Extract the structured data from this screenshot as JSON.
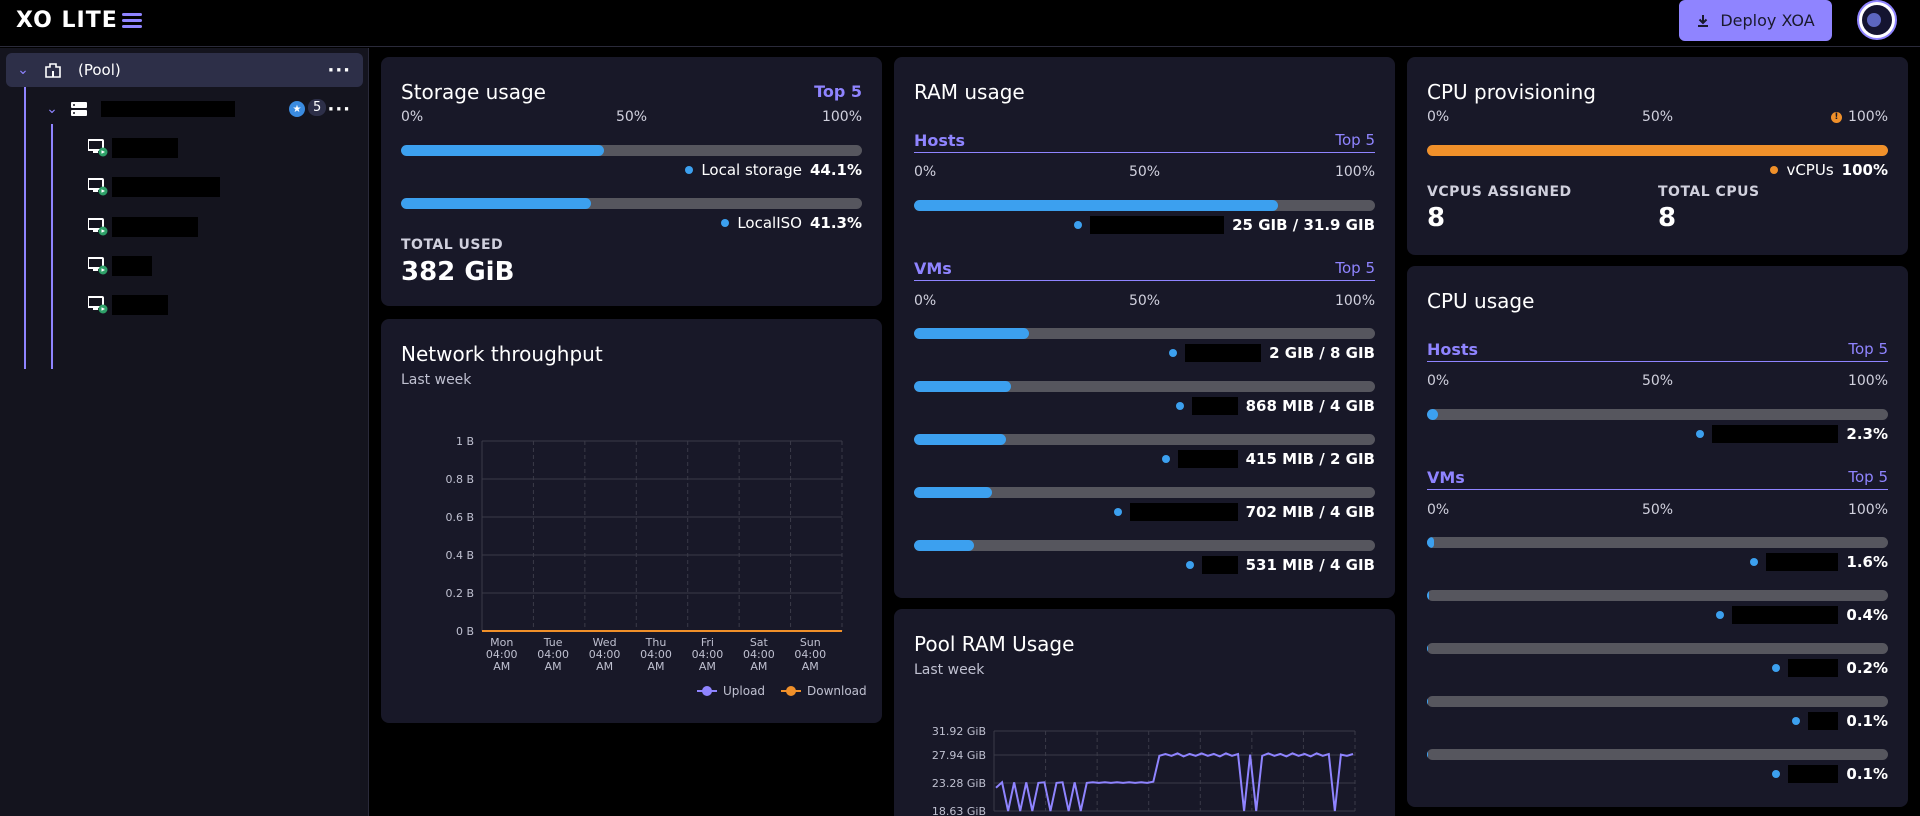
{
  "header": {
    "logo": "XO LITE",
    "deploy_label": "Deploy XOA"
  },
  "sidebar": {
    "pool_label": "(Pool)",
    "host_badge_count": "5"
  },
  "storage": {
    "title": "Storage usage",
    "top5": "Top 5",
    "scale": [
      "0%",
      "50%",
      "100%"
    ],
    "items": [
      {
        "name": "Local storage",
        "percent": "44.1%",
        "fraction": 0.441
      },
      {
        "name": "LocalISO",
        "percent": "41.3%",
        "fraction": 0.413
      }
    ],
    "total_label": "TOTAL USED",
    "total_value": "382 GiB"
  },
  "network": {
    "title": "Network throughput",
    "subtitle": "Last week"
  },
  "chart_data": [
    {
      "type": "line",
      "title": "Network throughput",
      "subtitle": "Last week",
      "x": [
        "Mon 04:00 AM",
        "Tue 04:00 AM",
        "Wed 04:00 AM",
        "Thu 04:00 AM",
        "Fri 04:00 AM",
        "Sat 04:00 AM",
        "Sun 04:00 AM"
      ],
      "x_tick_lines": [
        [
          "Mon",
          "04:00",
          "AM"
        ],
        [
          "Tue",
          "04:00",
          "AM"
        ],
        [
          "Wed",
          "04:00",
          "AM"
        ],
        [
          "Thu",
          "04:00",
          "AM"
        ],
        [
          "Fri",
          "04:00",
          "AM"
        ],
        [
          "Sat",
          "04:00",
          "AM"
        ],
        [
          "Sun",
          "04:00",
          "AM"
        ]
      ],
      "y_ticks": [
        "0 B",
        "0.2 B",
        "0.4 B",
        "0.6 B",
        "0.8 B",
        "1 B"
      ],
      "ylim": [
        0,
        1
      ],
      "grid": true,
      "legend_position": "bottom-right",
      "series": [
        {
          "name": "Upload",
          "color": "#8f84ff",
          "values": [
            0,
            0,
            0,
            0,
            0,
            0,
            0
          ]
        },
        {
          "name": "Download",
          "color": "#f0902a",
          "values": [
            0,
            0,
            0,
            0,
            0,
            0,
            0
          ]
        }
      ]
    },
    {
      "type": "line",
      "title": "Pool RAM Usage",
      "subtitle": "Last week",
      "y_ticks": [
        "18.63 GiB",
        "23.28 GiB",
        "27.94 GiB",
        "31.92 GiB"
      ],
      "ylim": [
        18.63,
        31.92
      ],
      "grid": true,
      "series": [
        {
          "name": "",
          "color": "#8f84ff",
          "values": [
            22.5,
            23.4,
            18.63,
            23.4,
            18.63,
            23.4,
            18.63,
            23.3,
            23.4,
            18.63,
            23.3,
            23.4,
            18.63,
            23.4,
            18.63,
            23.3,
            23.4,
            23.3,
            23.4,
            23.3,
            23.4,
            23.3,
            23.4,
            23.3,
            23.4,
            23.3,
            23.5,
            27.8,
            28.1,
            27.8,
            28.2,
            27.7,
            28.1,
            27.8,
            28.2,
            27.8,
            28.1,
            27.7,
            28.2,
            27.8,
            28.1,
            18.63,
            28.0,
            18.63,
            27.8,
            28.2,
            27.8,
            28.1,
            27.7,
            28.2,
            27.8,
            28.1,
            27.7,
            28.2,
            27.8,
            28.1,
            18.63,
            28.0,
            27.8,
            28.1
          ]
        }
      ]
    }
  ],
  "ram": {
    "title": "RAM usage",
    "hosts_label": "Hosts",
    "vms_label": "VMs",
    "top5": "Top 5",
    "scale": [
      "0%",
      "50%",
      "100%"
    ],
    "hosts": [
      {
        "value": "25 GIB / 31.9 GIB",
        "fraction": 0.79
      }
    ],
    "vms": [
      {
        "value": "2 GIB / 8 GIB",
        "fraction": 0.25
      },
      {
        "value": "868 MIB / 4 GIB",
        "fraction": 0.21
      },
      {
        "value": "415 MIB / 2 GIB",
        "fraction": 0.2
      },
      {
        "value": "702 MIB / 4 GIB",
        "fraction": 0.17
      },
      {
        "value": "531 MIB / 4 GIB",
        "fraction": 0.13
      }
    ]
  },
  "pool_ram": {
    "title": "Pool RAM Usage",
    "subtitle": "Last week"
  },
  "cpu_prov": {
    "title": "CPU provisioning",
    "scale": [
      "0%",
      "50%",
      "100%"
    ],
    "fraction": 1.0,
    "legend_name": "vCPUs",
    "legend_value": "100%",
    "vcpus_label": "VCPUS ASSIGNED",
    "vcpus_value": "8",
    "total_label": "TOTAL CPUS",
    "total_value": "8"
  },
  "cpu_usage": {
    "title": "CPU usage",
    "hosts_label": "Hosts",
    "vms_label": "VMs",
    "top5": "Top 5",
    "scale": [
      "0%",
      "50%",
      "100%"
    ],
    "hosts": [
      {
        "value": "2.3%",
        "fraction": 0.023
      }
    ],
    "vms": [
      {
        "value": "1.6%",
        "fraction": 0.016
      },
      {
        "value": "0.4%",
        "fraction": 0.004
      },
      {
        "value": "0.2%",
        "fraction": 0.002
      },
      {
        "value": "0.1%",
        "fraction": 0.001
      },
      {
        "value": "0.1%",
        "fraction": 0.001
      }
    ]
  },
  "colors": {
    "accent": "#8f84ff",
    "bar_fill": "#3ca0ef",
    "warning": "#f0902a",
    "card_bg": "#181828"
  }
}
